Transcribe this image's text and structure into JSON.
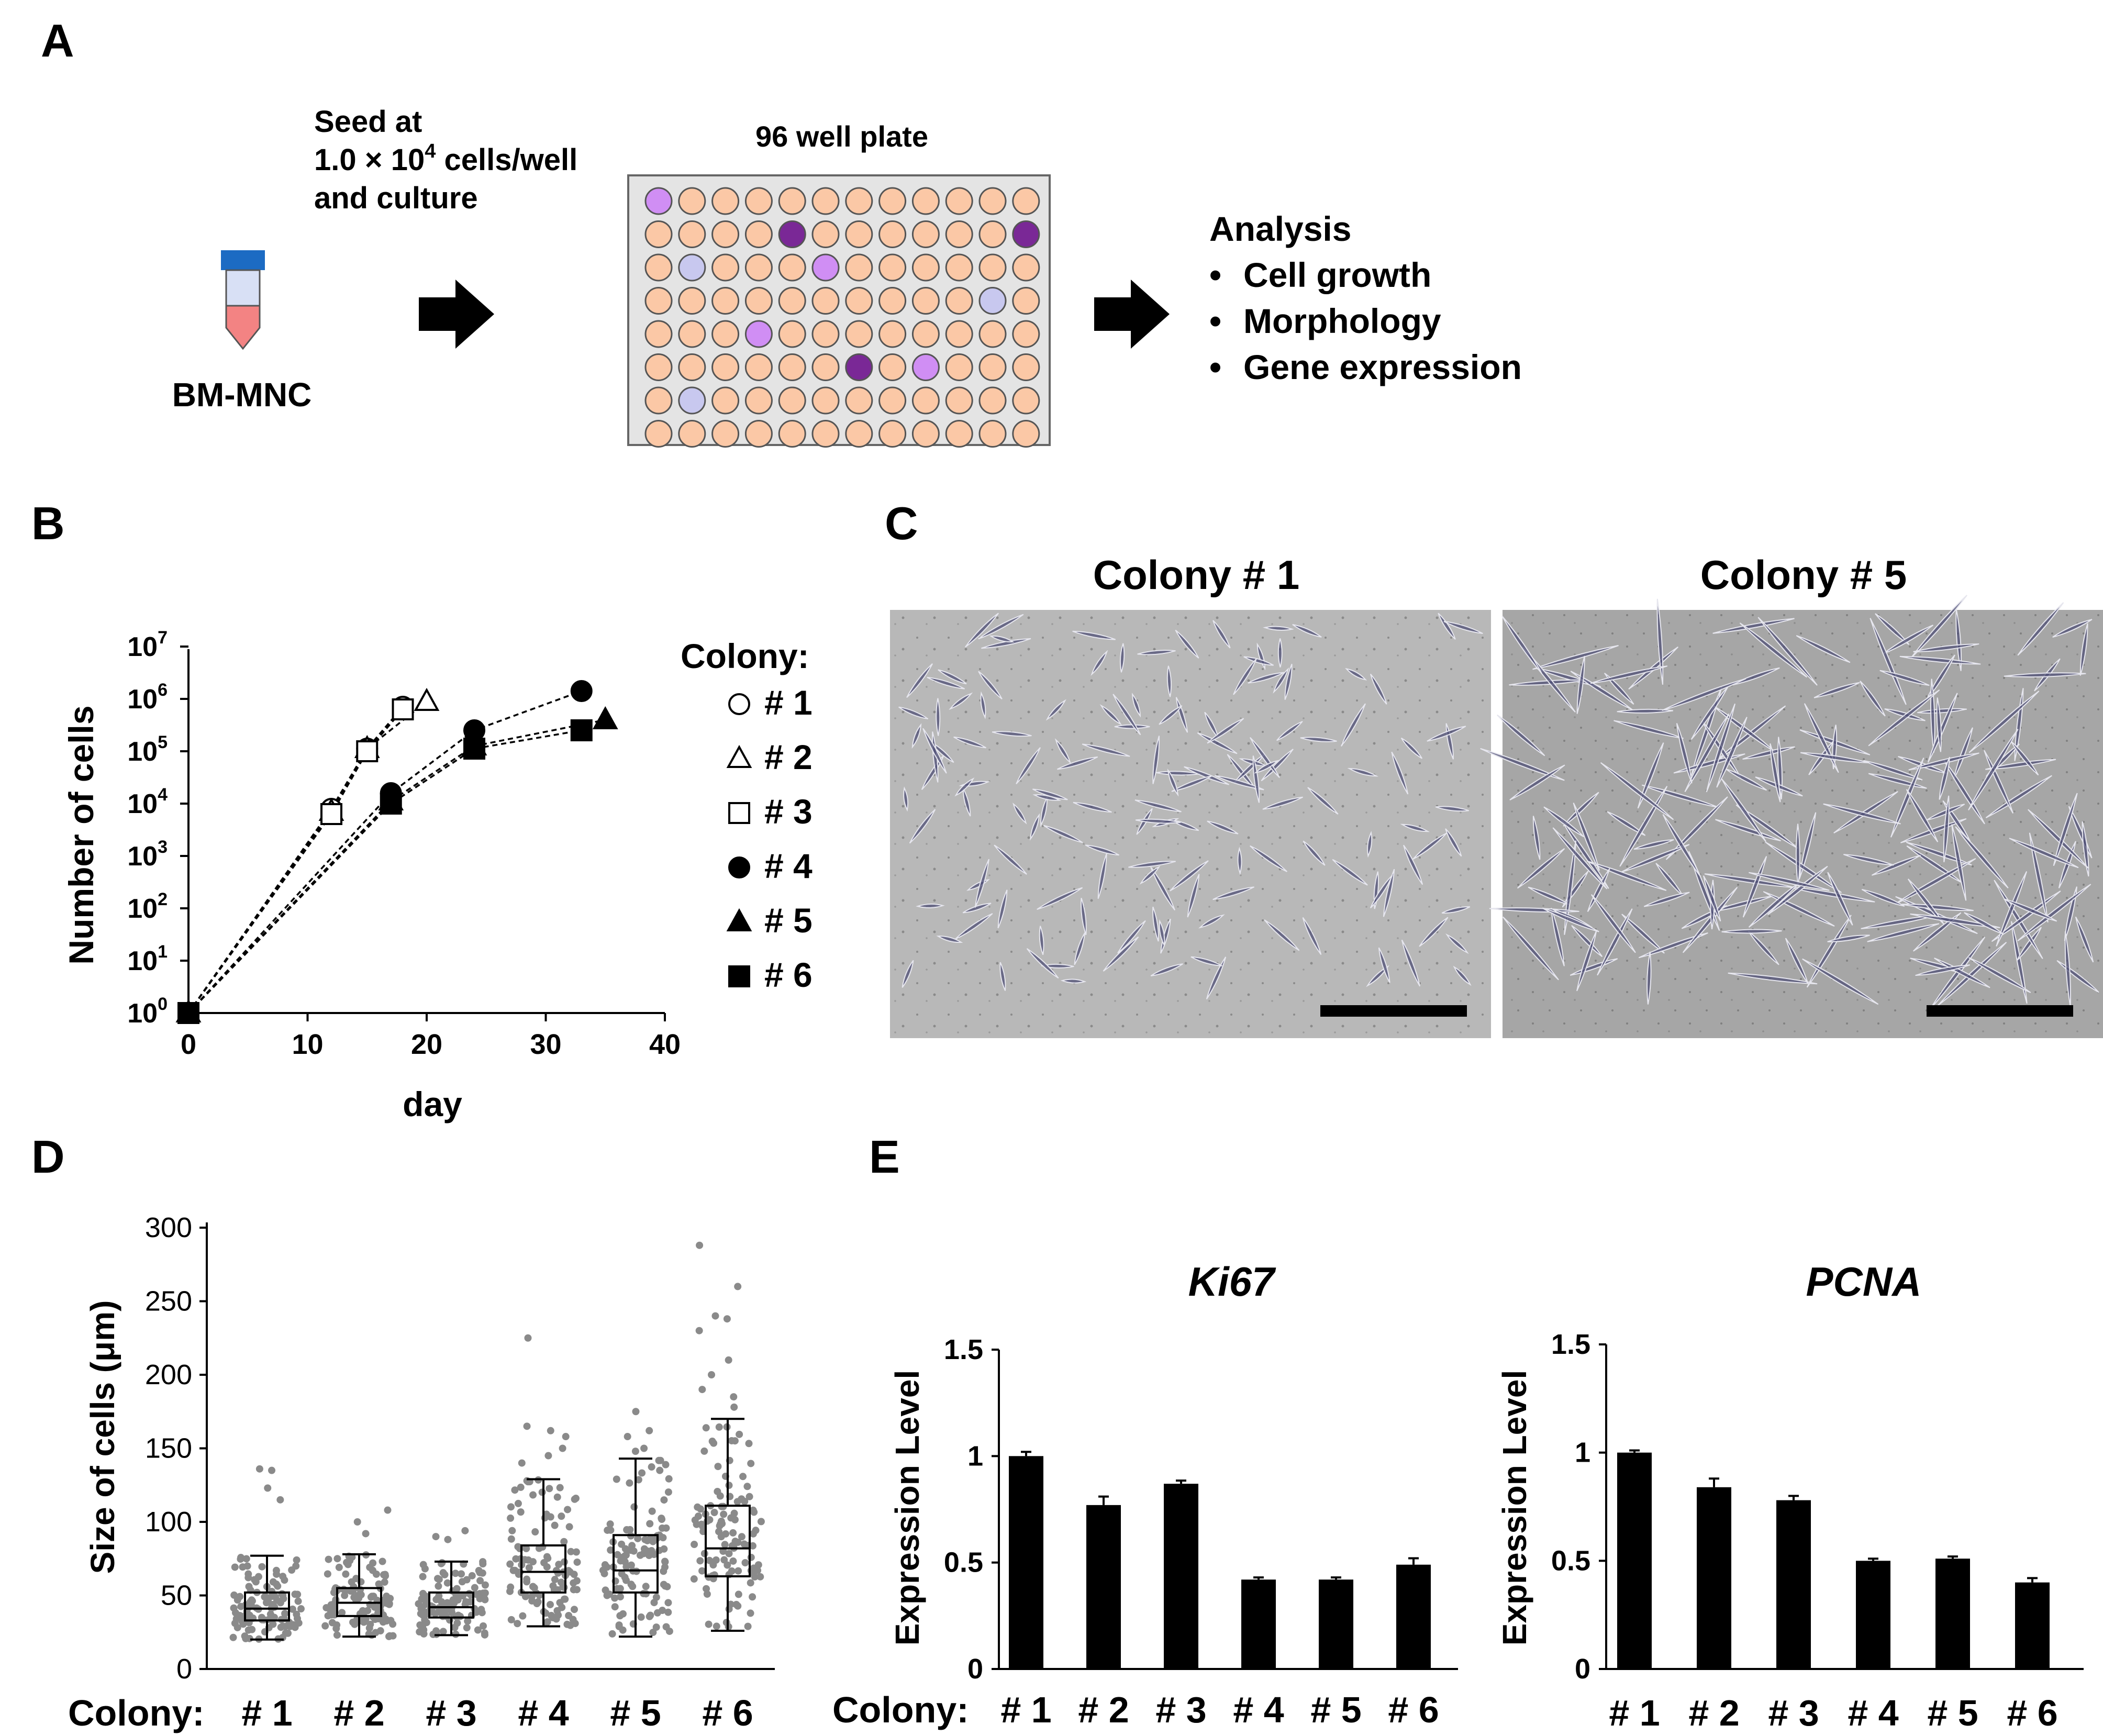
{
  "panel_letters": [
    "A",
    "B",
    "C",
    "D",
    "E"
  ],
  "panel_a": {
    "seed_text": [
      "Seed at",
      "1.0 × 10",
      "4",
      " cells/well",
      "and  culture"
    ],
    "tube_label": "BM-MNC",
    "plate_title": "96 well plate",
    "plate_rows": 8,
    "plate_cols": 12,
    "well_colors": {
      "normal": "#fbc8a6",
      "light_purple": "#d08ef4",
      "dark_purple": "#7a2896",
      "light_blue": "#c8c8ef"
    },
    "colored_wells": [
      {
        "row": 0,
        "col": 0,
        "type": "light_purple"
      },
      {
        "row": 1,
        "col": 4,
        "type": "dark_purple"
      },
      {
        "row": 1,
        "col": 11,
        "type": "dark_purple"
      },
      {
        "row": 2,
        "col": 1,
        "type": "light_blue"
      },
      {
        "row": 2,
        "col": 5,
        "type": "light_purple"
      },
      {
        "row": 3,
        "col": 10,
        "type": "light_blue"
      },
      {
        "row": 4,
        "col": 3,
        "type": "light_purple"
      },
      {
        "row": 5,
        "col": 6,
        "type": "dark_purple"
      },
      {
        "row": 5,
        "col": 8,
        "type": "light_purple"
      },
      {
        "row": 6,
        "col": 1,
        "type": "light_blue"
      }
    ],
    "analysis_title": "Analysis",
    "analysis_items": [
      "Cell growth",
      "Morphology",
      "Gene expression"
    ],
    "bullet": "•",
    "tube_colors": {
      "cap": "#1c6bc3",
      "body": "#d8e0f5",
      "bottom": "#f38383"
    }
  },
  "chart_data": [
    {
      "id": "B",
      "type": "line",
      "yscale": "log10",
      "xlabel": "day",
      "ylabel": "Number of cells",
      "xlim": [
        0,
        40
      ],
      "xticks": [
        0,
        10,
        20,
        30,
        40
      ],
      "ylim_exp": [
        0,
        7
      ],
      "ytick_base": "10",
      "yticks_exp": [
        "0",
        "1",
        "2",
        "3",
        "4",
        "5",
        "6",
        "7"
      ],
      "legend_title": "Colony:",
      "series": [
        {
          "name": "# 1",
          "marker": "circle-open",
          "x": [
            0,
            12,
            15,
            18
          ],
          "y_exp": [
            0,
            3.9,
            5.05,
            5.85
          ]
        },
        {
          "name": "# 2",
          "marker": "triangle-open",
          "x": [
            0,
            12,
            15,
            20
          ],
          "y_exp": [
            0,
            3.85,
            5.05,
            5.95
          ]
        },
        {
          "name": "# 3",
          "marker": "square-open",
          "x": [
            0,
            12,
            15,
            18
          ],
          "y_exp": [
            0,
            3.8,
            5.0,
            5.8
          ]
        },
        {
          "name": "# 4",
          "marker": "circle-filled",
          "x": [
            0,
            17,
            24,
            33
          ],
          "y_exp": [
            0,
            4.2,
            5.4,
            6.15
          ]
        },
        {
          "name": "# 5",
          "marker": "triangle-filled",
          "x": [
            0,
            17,
            24,
            35
          ],
          "y_exp": [
            0,
            4.05,
            5.1,
            5.6
          ]
        },
        {
          "name": "# 6",
          "marker": "square-filled",
          "x": [
            0,
            17,
            24,
            33
          ],
          "y_exp": [
            0,
            4.0,
            5.05,
            5.4
          ]
        }
      ]
    },
    {
      "id": "D",
      "type": "box",
      "ylabel": "Size of cells (μm)",
      "xlabel_prefix": "Colony:",
      "ylim": [
        0,
        300
      ],
      "yticks": [
        0,
        50,
        100,
        150,
        200,
        250,
        300
      ],
      "categories": [
        "# 1",
        "# 2",
        "# 3",
        "# 4",
        "# 5",
        "# 6"
      ],
      "boxes": [
        {
          "min": 20,
          "q1": 33,
          "median": 41,
          "q3": 52,
          "max": 77
        },
        {
          "min": 22,
          "q1": 36,
          "median": 45,
          "q3": 55,
          "max": 78
        },
        {
          "min": 23,
          "q1": 35,
          "median": 42,
          "q3": 52,
          "max": 73
        },
        {
          "min": 29,
          "q1": 52,
          "median": 66,
          "q3": 84,
          "max": 129
        },
        {
          "min": 22,
          "q1": 52,
          "median": 67,
          "q3": 91,
          "max": 143
        },
        {
          "min": 26,
          "q1": 63,
          "median": 82,
          "q3": 111,
          "max": 170
        }
      ],
      "outliers": [
        {
          "category": "# 1",
          "values": [
            136,
            135,
            123,
            115
          ]
        },
        {
          "category": "# 2",
          "values": [
            108,
            100,
            92
          ]
        },
        {
          "category": "# 3",
          "values": [
            94,
            90,
            88
          ]
        },
        {
          "category": "# 4",
          "values": [
            225,
            165,
            162,
            158,
            150,
            145,
            140
          ]
        },
        {
          "category": "# 5",
          "values": [
            175,
            162,
            158,
            150,
            148
          ]
        },
        {
          "category": "# 6",
          "values": [
            288,
            260,
            240,
            238,
            230,
            210,
            200,
            190,
            185,
            178
          ]
        }
      ]
    },
    {
      "id": "E-Ki67",
      "type": "bar",
      "title": "Ki67",
      "ylabel": "Expression Level",
      "xlabel_prefix": "Colony:",
      "ylim": [
        0,
        1.5
      ],
      "yticks": [
        "0",
        "0.5",
        "1",
        "1.5"
      ],
      "categories": [
        "# 1",
        "# 2",
        "# 3",
        "# 4",
        "# 5",
        "# 6"
      ],
      "values": [
        1.0,
        0.77,
        0.87,
        0.42,
        0.42,
        0.49
      ],
      "errors": [
        0.02,
        0.04,
        0.015,
        0.01,
        0.01,
        0.03
      ]
    },
    {
      "id": "E-PCNA",
      "type": "bar",
      "title": "PCNA",
      "ylabel": "Expression Level",
      "ylim": [
        0,
        1.5
      ],
      "yticks": [
        "0",
        "0.5",
        "1",
        "1.5"
      ],
      "categories": [
        "# 1",
        "# 2",
        "# 3",
        "# 4",
        "# 5",
        "# 6"
      ],
      "values": [
        1.0,
        0.84,
        0.78,
        0.5,
        0.51,
        0.4
      ],
      "errors": [
        0.01,
        0.04,
        0.02,
        0.01,
        0.01,
        0.02
      ]
    }
  ],
  "panel_c": {
    "images": [
      {
        "title": "Colony # 1",
        "image_desc": "phase-contrast micrograph with spindle-shaped sparse cells"
      },
      {
        "title": "Colony # 5",
        "image_desc": "phase-contrast micrograph with elongated dense cells"
      }
    ]
  }
}
